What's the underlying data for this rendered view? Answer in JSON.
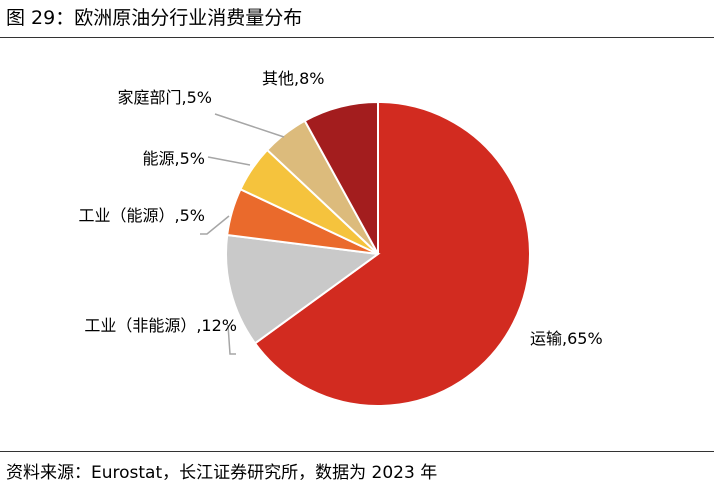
{
  "figure": {
    "title": "图 29：欧洲原油分行业消费量分布",
    "source": "资料来源：Eurostat，长江证券研究所，数据为 2023 年"
  },
  "chart_data": {
    "type": "pie",
    "title": "",
    "start_angle_deg": 0,
    "direction": "clockwise",
    "legend": "none",
    "slices": [
      {
        "name": "运输",
        "value": 65,
        "label": "运输,65%",
        "color": "#d22b20"
      },
      {
        "name": "工业（非能源）",
        "value": 12,
        "label": "工业（非能源）,12%",
        "color": "#c9c9c9"
      },
      {
        "name": "工业（能源）",
        "value": 5,
        "label": "工业（能源）,5%",
        "color": "#ea6a2c"
      },
      {
        "name": "能源",
        "value": 5,
        "label": "能源,5%",
        "color": "#f5c33d"
      },
      {
        "name": "家庭部门",
        "value": 5,
        "label": "家庭部门,5%",
        "color": "#dcbb7c"
      },
      {
        "name": "其他",
        "value": 8,
        "label": "其他,8%",
        "color": "#a31d1e"
      }
    ]
  }
}
